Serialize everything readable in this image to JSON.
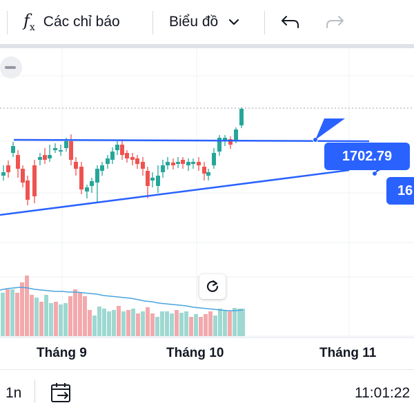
{
  "toolbar": {
    "indicators_label": "Các chỉ báo",
    "chart_type_label": "Biểu đồ",
    "icons": [
      "fx-icon",
      "chevron-down-icon",
      "undo-icon",
      "redo-icon"
    ]
  },
  "chart": {
    "price_labels": [
      "1702.79",
      "16"
    ],
    "x_axis_labels": [
      "Tháng 9",
      "Tháng 10",
      "Tháng 11"
    ],
    "colors": {
      "up": "#26a69a",
      "down": "#ef5350",
      "trendline": "#2962ff",
      "volume_ma": "#4aa3df"
    }
  },
  "bottom": {
    "interval": "1n",
    "time": "11:01:22"
  }
}
